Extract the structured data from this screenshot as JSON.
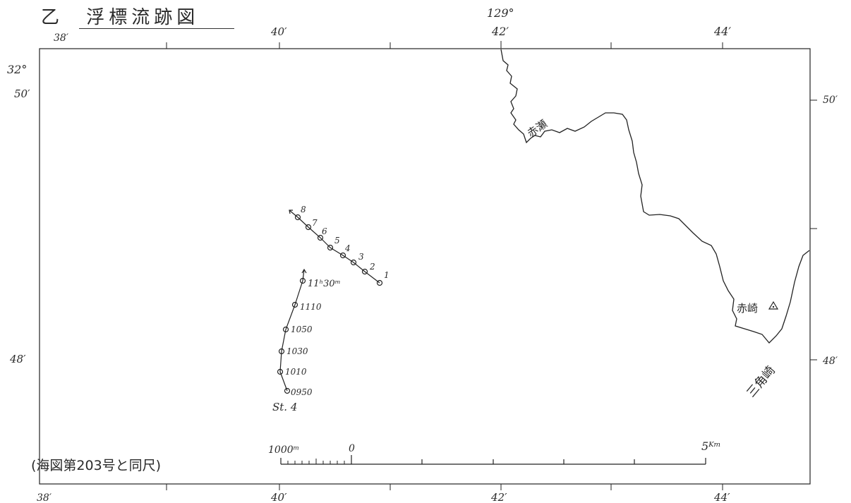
{
  "title": {
    "label": "乙",
    "text": "浮標流跡図"
  },
  "longitude": {
    "degree_label": "129°",
    "top_ticks": [
      "38′",
      "40′",
      "42′",
      "44′"
    ],
    "bottom_ticks": [
      "38′",
      "40′",
      "42′",
      "44′"
    ]
  },
  "latitude": {
    "degree_label": "32°",
    "left_ticks": [
      "50′",
      "48′"
    ],
    "right_ticks": [
      "50′",
      "48′"
    ]
  },
  "places": [
    {
      "name": "赤瀬"
    },
    {
      "name": "赤崎"
    },
    {
      "name": "三角崎"
    }
  ],
  "track_a": {
    "labels": [
      "1",
      "2",
      "3",
      "4",
      "5",
      "6",
      "7",
      "8"
    ]
  },
  "track_b": {
    "labels": [
      "0950",
      "1010",
      "1030",
      "1050",
      "1110",
      "11ʰ30ᵐ"
    ],
    "station": "St. 4"
  },
  "scale_bar": {
    "left_label": "1000ᵐ",
    "zero_label": "0",
    "right_label": "5ᴷᵐ"
  },
  "note": "(海図第203号と同尺)",
  "colors": {
    "ink": "#222222",
    "paper": "#ffffff"
  }
}
